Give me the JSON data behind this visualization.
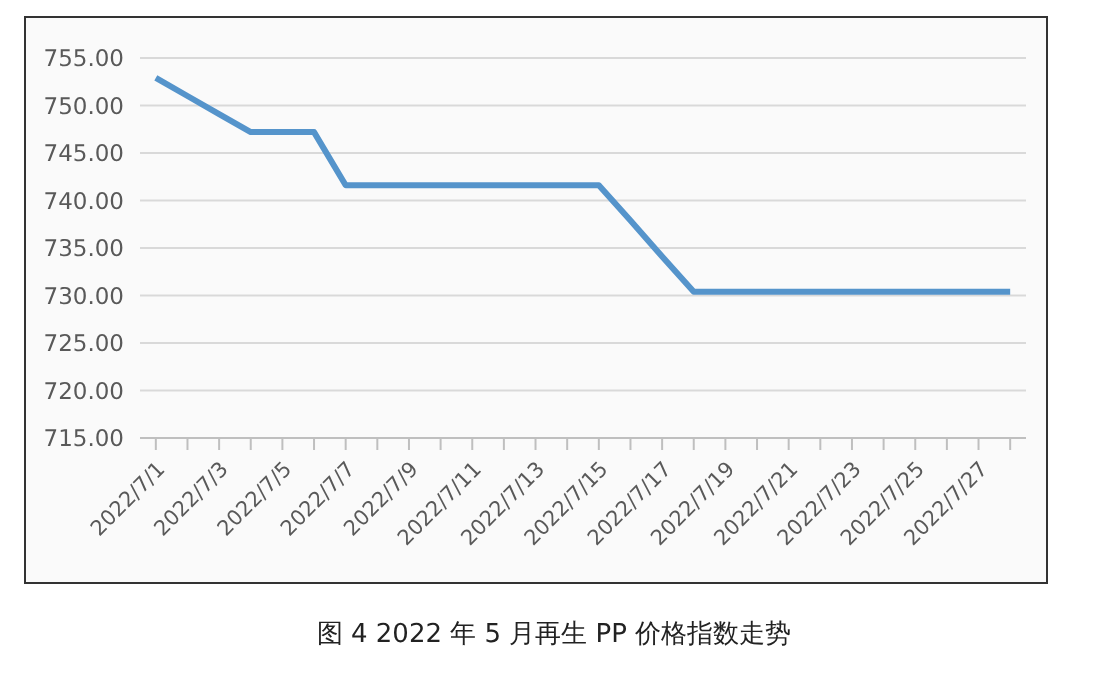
{
  "chart_data": {
    "type": "line",
    "title": "图 4  2022 年 5 月再生 PP 价格指数走势",
    "categories": [
      "2022/7/1",
      null,
      "2022/7/3",
      null,
      "2022/7/5",
      null,
      "2022/7/7",
      null,
      "2022/7/9",
      null,
      "2022/7/11",
      null,
      "2022/7/13",
      null,
      "2022/7/15",
      null,
      "2022/7/17",
      null,
      "2022/7/19",
      null,
      "2022/7/21",
      null,
      "2022/7/23",
      null,
      "2022/7/25",
      null,
      "2022/7/27",
      null
    ],
    "series": [
      {
        "color": "#5594cb",
        "values": [
          752.9,
          751.0,
          749.1,
          747.2,
          747.2,
          747.2,
          741.6,
          741.6,
          741.6,
          741.6,
          741.6,
          741.6,
          741.6,
          741.6,
          741.6,
          737.9,
          734.1,
          730.4,
          730.4,
          730.4,
          730.4,
          730.4,
          730.4,
          730.4,
          730.4,
          730.4,
          730.4,
          730.4
        ]
      }
    ],
    "ylim": [
      715,
      755
    ],
    "yticks": [
      {
        "value": 715,
        "label": "715.00"
      },
      {
        "value": 720,
        "label": "720.00"
      },
      {
        "value": 725,
        "label": "725.00"
      },
      {
        "value": 730,
        "label": "730.00"
      },
      {
        "value": 735,
        "label": "735.00"
      },
      {
        "value": 740,
        "label": "740.00"
      },
      {
        "value": 745,
        "label": "745.00"
      },
      {
        "value": 750,
        "label": "750.00"
      },
      {
        "value": 755,
        "label": "755.00"
      }
    ],
    "grid": "y",
    "legend": false,
    "marker": "none",
    "line_style": "solid"
  }
}
